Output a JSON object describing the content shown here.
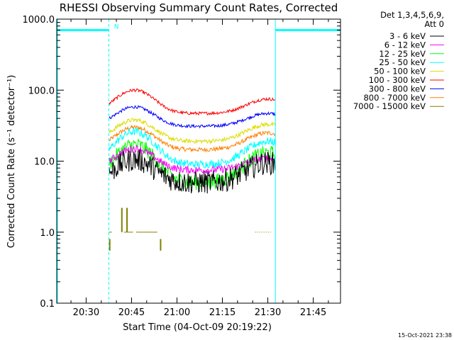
{
  "chart_data": {
    "type": "line",
    "title": "RHESSI Observing Summary Count Rates, Corrected",
    "xlabel": "Start Time (04-Oct-09 20:19:22)",
    "ylabel": "Corrected Count Rate (s⁻¹ detector⁻¹)",
    "y_scale": "log",
    "ylim": [
      0.1,
      1000
    ],
    "xlim_minutes": [
      20.3,
      114.0
    ],
    "x_ticks": [
      {
        "label": "20:30",
        "minute": 30
      },
      {
        "label": "20:45",
        "minute": 45
      },
      {
        "label": "21:00",
        "minute": 60
      },
      {
        "label": "21:15",
        "minute": 75
      },
      {
        "label": "21:30",
        "minute": 90
      },
      {
        "label": "21:45",
        "minute": 105
      }
    ],
    "y_ticks": [
      {
        "label": "0.1",
        "value": 0.1
      },
      {
        "label": "1.0",
        "value": 1
      },
      {
        "label": "10.0",
        "value": 10
      },
      {
        "label": "100.0",
        "value": 100
      },
      {
        "label": "1000.0",
        "value": 1000
      }
    ],
    "legend_header": [
      "Det 1,3,4,5,6,9,",
      "Att 0"
    ],
    "series": [
      {
        "name": "3 - 6 keV",
        "color": "#000000",
        "base": 5.0,
        "peaks": [
          10.5,
          9.5
        ],
        "noise": 0.38
      },
      {
        "name": "6 - 12 keV",
        "color": "#ff00ff",
        "base": 7.5,
        "peaks": [
          15.0,
          11.0
        ],
        "noise": 0.12
      },
      {
        "name": "12 - 25 keV",
        "color": "#00ff00",
        "base": 5.0,
        "peaks": [
          17.0,
          13.0
        ],
        "noise": 0.25
      },
      {
        "name": "25 - 50 keV",
        "color": "#00ffff",
        "base": 9.0,
        "peaks": [
          26.0,
          19.0
        ],
        "noise": 0.13
      },
      {
        "name": "50 - 100 keV",
        "color": "#dddd00",
        "base": 19.0,
        "peaks": [
          38.0,
          33.0
        ],
        "noise": 0.07
      },
      {
        "name": "100 - 300 keV",
        "color": "#ff0000",
        "base": 47.0,
        "peaks": [
          100.0,
          75.0
        ],
        "noise": 0.05
      },
      {
        "name": "300 - 800 keV",
        "color": "#0000ff",
        "base": 31.0,
        "peaks": [
          58.0,
          47.0
        ],
        "noise": 0.05
      },
      {
        "name": "800 - 7000 keV",
        "color": "#ff8000",
        "base": 14.5,
        "peaks": [
          30.0,
          25.0
        ],
        "noise": 0.07
      },
      {
        "name": "7000 - 15000 keV",
        "color": "#808000",
        "base": null,
        "peaks": [],
        "noise": 0
      }
    ],
    "curve_shape": {
      "peak_minutes": [
        46,
        90
      ],
      "widths": [
        8,
        9
      ]
    },
    "night_intervals_minutes": [
      [
        20.3,
        37.5
      ],
      [
        92.5,
        114.0
      ]
    ],
    "saa_flag_level": 700,
    "saa_marker": {
      "label": "N",
      "minute": 38.5
    },
    "high_energy_flags": {
      "level": 1.0,
      "spikes": [
        {
          "minute": 41.8,
          "value": 2.2
        },
        {
          "minute": 43.5,
          "value": 2.2
        }
      ],
      "dips": [
        {
          "minute": 37.8,
          "value": 0.55
        },
        {
          "minute": 54.6,
          "value": 0.55
        }
      ],
      "segments_minutes": [
        [
          37.5,
          38.5
        ],
        [
          42.5,
          45.5
        ],
        [
          46.5,
          53.5
        ],
        [
          85.8,
          91.0
        ]
      ]
    }
  },
  "footer": {
    "timestamp": "15-Oct-2021 23:38"
  }
}
